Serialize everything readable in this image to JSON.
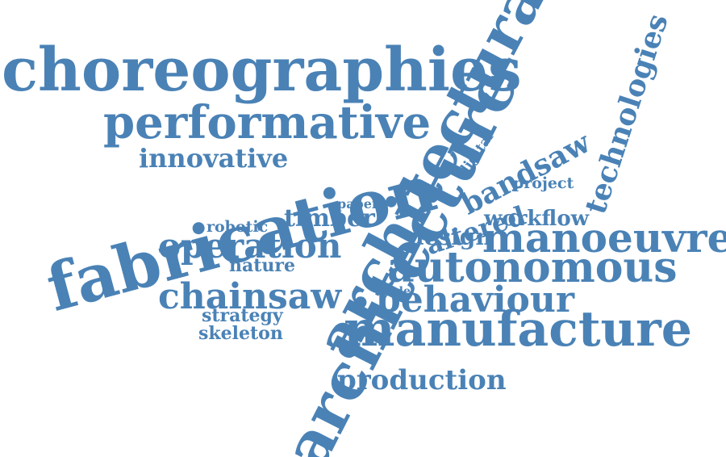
{
  "colors": {
    "word": "#4a82b6",
    "background": "#ffffff"
  },
  "words": [
    "choreographies",
    "performative",
    "innovative",
    "fabrication",
    "architectural",
    "technologies",
    "bandsaw",
    "digital",
    "project",
    "paper",
    "altered",
    "timber",
    "robotic",
    "workflow",
    "operation",
    "design",
    "manoeuvre",
    "nature",
    "autonomous",
    "chainsaw",
    "mode",
    "behaviour",
    "strategy",
    "skeleton",
    "manufacture",
    "production",
    "architecture"
  ]
}
